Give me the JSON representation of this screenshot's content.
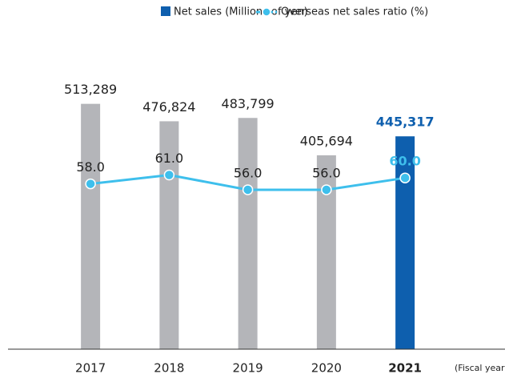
{
  "chart_data": {
    "type": "bar_line",
    "categories": [
      "2017",
      "2018",
      "2019",
      "2020",
      "2021"
    ],
    "x_label": "(Fiscal year)",
    "highlight": 4,
    "series": [
      {
        "name": "Net sales (Millions of yen)",
        "type": "bar",
        "color": "#0e5fae",
        "highlight_color": "#0e5fae",
        "point_color": "#b4b5b9",
        "values": [
          513289,
          476824,
          483799,
          405694,
          445317
        ],
        "value_labels": [
          "513,289",
          "476,824",
          "483,799",
          "405,694",
          "445,317"
        ]
      },
      {
        "name": "Overseas net sales ratio (%)",
        "type": "line",
        "axis": "y2",
        "color": "#3ebfec",
        "values": [
          58,
          61,
          56,
          56,
          60
        ],
        "value_labels": [
          "58.0",
          "61.0",
          "56.0",
          "56.0",
          "60.0"
        ]
      }
    ],
    "ylim": [
      0,
      630000
    ],
    "y2lim": [
      2,
      104
    ]
  }
}
